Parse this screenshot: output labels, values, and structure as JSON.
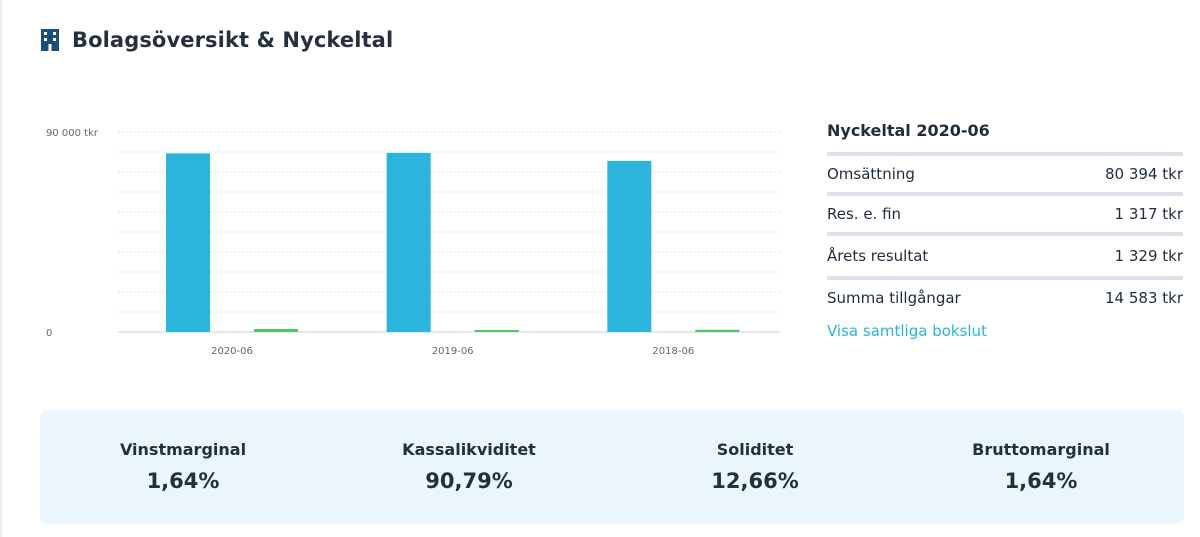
{
  "header": {
    "title": "Bolagsöversikt & Nyckeltal",
    "icon": "building-icon"
  },
  "chart_data": {
    "type": "bar",
    "categories": [
      "2020-06",
      "2019-06",
      "2018-06"
    ],
    "series": [
      {
        "name": "Omsättning",
        "color": "#2bb5dc",
        "values": [
          80394,
          80600,
          77000
        ]
      },
      {
        "name": "Resultat",
        "color": "#4cc76a",
        "values": [
          1329,
          900,
          1000
        ]
      }
    ],
    "y_tick_labels": [
      "90 000 tkr",
      "0"
    ],
    "ylim": [
      0,
      90000
    ],
    "grid": true
  },
  "kpi": {
    "title": "Nyckeltal 2020-06",
    "rows": [
      {
        "label": "Omsättning",
        "value": "80 394 tkr"
      },
      {
        "label": "Res. e. fin",
        "value": "1 317 tkr"
      },
      {
        "label": "Årets resultat",
        "value": "1 329 tkr"
      },
      {
        "label": "Summa tillgångar",
        "value": "14 583 tkr"
      }
    ],
    "link": "Visa samtliga bokslut"
  },
  "stats": [
    {
      "label": "Vinstmarginal",
      "value": "1,64%"
    },
    {
      "label": "Kassalikviditet",
      "value": "90,79%"
    },
    {
      "label": "Soliditet",
      "value": "12,66%"
    },
    {
      "label": "Bruttomarginal",
      "value": "1,64%"
    }
  ]
}
